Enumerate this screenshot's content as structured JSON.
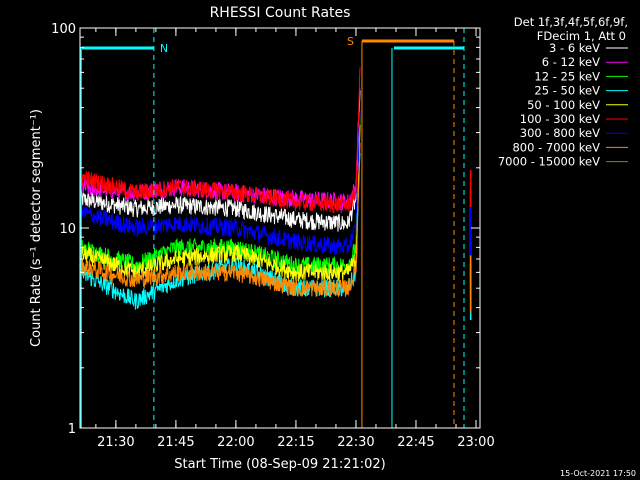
{
  "chart_data": {
    "type": "line",
    "title": "RHESSI Count Rates",
    "xlabel": "Start Time (08-Sep-09 21:21:02)",
    "ylabel": "Count Rate (s⁻¹ detector segment⁻¹)",
    "yscale": "log",
    "ylim": [
      1,
      100
    ],
    "y_ticks": [
      {
        "value": 1,
        "label": "1"
      },
      {
        "value": 10,
        "label": "10"
      },
      {
        "value": 100,
        "label": "100"
      }
    ],
    "xlim": [
      "21:21:02",
      "23:01:00"
    ],
    "x_ticks": [
      "21:30",
      "21:45",
      "22:00",
      "22:15",
      "22:30",
      "22:45",
      "23:00"
    ],
    "legend": {
      "placement": "right",
      "header": [
        "Det 1f,3f,4f,5f,6f,9f,",
        "FDecim 1, Att 0"
      ]
    },
    "series": [
      {
        "name": "3 - 6 keV",
        "color": "#ffffff",
        "values": [
          {
            "t": "21:21",
            "y": 14
          },
          {
            "t": "21:35",
            "y": 12.5
          },
          {
            "t": "21:45",
            "y": 13
          },
          {
            "t": "22:00",
            "y": 12.5
          },
          {
            "t": "22:15",
            "y": 11
          },
          {
            "t": "22:28",
            "y": 10.5
          },
          {
            "t": "22:30",
            "y": 14
          },
          {
            "t": "22:31",
            "y": 45
          }
        ]
      },
      {
        "name": "6 - 12 keV",
        "color": "#ff00ff",
        "values": [
          {
            "t": "21:21",
            "y": 16
          },
          {
            "t": "21:35",
            "y": 15
          },
          {
            "t": "21:45",
            "y": 16
          },
          {
            "t": "22:00",
            "y": 15
          },
          {
            "t": "22:15",
            "y": 14
          },
          {
            "t": "22:28",
            "y": 13.5
          },
          {
            "t": "22:30",
            "y": 16
          },
          {
            "t": "22:31",
            "y": 55
          }
        ]
      },
      {
        "name": "12 - 25 keV",
        "color": "#00ff00",
        "values": [
          {
            "t": "21:21",
            "y": 8
          },
          {
            "t": "21:35",
            "y": 6.5
          },
          {
            "t": "21:45",
            "y": 8
          },
          {
            "t": "22:00",
            "y": 8
          },
          {
            "t": "22:15",
            "y": 6.5
          },
          {
            "t": "22:28",
            "y": 6.5
          },
          {
            "t": "22:30",
            "y": 8
          },
          {
            "t": "22:31",
            "y": 35
          }
        ]
      },
      {
        "name": "25 - 50 keV",
        "color": "#00ffff",
        "values": [
          {
            "t": "21:21",
            "y": 6
          },
          {
            "t": "21:35",
            "y": 4.3
          },
          {
            "t": "21:45",
            "y": 5.5
          },
          {
            "t": "22:00",
            "y": 6.5
          },
          {
            "t": "22:15",
            "y": 5
          },
          {
            "t": "22:28",
            "y": 5
          },
          {
            "t": "22:30",
            "y": 6
          },
          {
            "t": "22:31",
            "y": 25
          }
        ]
      },
      {
        "name": "50 - 100 keV",
        "color": "#ffff00",
        "values": [
          {
            "t": "21:21",
            "y": 7.5
          },
          {
            "t": "21:35",
            "y": 6
          },
          {
            "t": "21:45",
            "y": 7
          },
          {
            "t": "22:00",
            "y": 7.5
          },
          {
            "t": "22:15",
            "y": 6
          },
          {
            "t": "22:28",
            "y": 6
          },
          {
            "t": "22:30",
            "y": 7
          },
          {
            "t": "22:31",
            "y": 30
          }
        ]
      },
      {
        "name": "100 - 300 keV",
        "color": "#ff0000",
        "values": [
          {
            "t": "21:21",
            "y": 18
          },
          {
            "t": "21:35",
            "y": 15
          },
          {
            "t": "21:45",
            "y": 16
          },
          {
            "t": "22:00",
            "y": 15
          },
          {
            "t": "22:15",
            "y": 13.5
          },
          {
            "t": "22:28",
            "y": 13
          },
          {
            "t": "22:30",
            "y": 15
          },
          {
            "t": "22:31",
            "y": 60
          }
        ]
      },
      {
        "name": "300 - 800 keV",
        "color": "#0000ff",
        "values": [
          {
            "t": "21:21",
            "y": 12
          },
          {
            "t": "21:35",
            "y": 10
          },
          {
            "t": "21:45",
            "y": 10.5
          },
          {
            "t": "22:00",
            "y": 10
          },
          {
            "t": "22:15",
            "y": 8.5
          },
          {
            "t": "22:28",
            "y": 8
          },
          {
            "t": "22:30",
            "y": 10
          },
          {
            "t": "22:31",
            "y": 40
          }
        ]
      },
      {
        "name": "800 - 7000 keV",
        "color": "#ff8800",
        "values": [
          {
            "t": "21:21",
            "y": 6.5
          },
          {
            "t": "21:35",
            "y": 5.5
          },
          {
            "t": "21:45",
            "y": 6
          },
          {
            "t": "22:00",
            "y": 6
          },
          {
            "t": "22:15",
            "y": 5
          },
          {
            "t": "22:28",
            "y": 5
          },
          {
            "t": "22:30",
            "y": 6
          },
          {
            "t": "22:31",
            "y": 28
          }
        ]
      },
      {
        "name": "7000 - 15000 keV",
        "color": "#6b8e23",
        "values": []
      }
    ],
    "annotations": {
      "night_markers": [
        {
          "label": "N",
          "color": "#00ffff",
          "start": "21:21:02",
          "end": "21:39:30"
        },
        {
          "label": "",
          "color": "#00ffff",
          "start": "22:39:00",
          "end": "22:57:00"
        }
      ],
      "saa_markers": [
        {
          "label": "S",
          "color": "#ff8800",
          "start": "22:31:30",
          "end": "22:54:30"
        }
      ]
    },
    "footer_timestamp": "15-Oct-2021 17:50"
  }
}
